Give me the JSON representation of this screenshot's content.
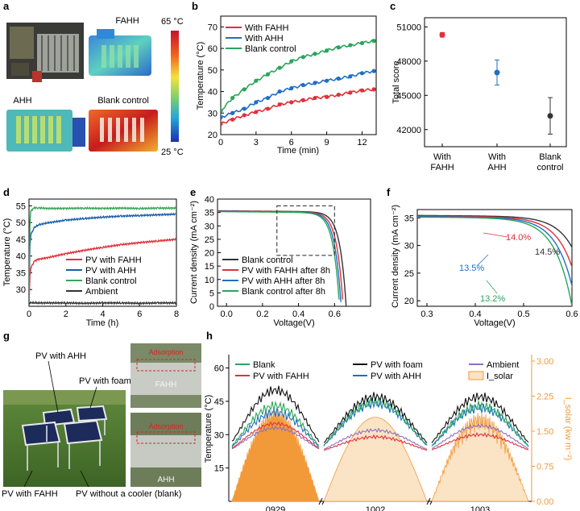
{
  "panel_letters": [
    "a",
    "b",
    "c",
    "d",
    "e",
    "f",
    "g",
    "h"
  ],
  "colors": {
    "fahh": "#e0303a",
    "ahh": "#1f6fc4",
    "blank": "#2aa55c",
    "ambient": "#333333",
    "ahh_d": "#1b5fa8",
    "blank_d": "#3aa45a",
    "solar": "#f29a3a",
    "solar_fill": "#fbe3c6"
  },
  "panel_a": {
    "labels": [
      "FAHH",
      "AHH",
      "Blank control"
    ],
    "colorbar_max": "65 °C",
    "colorbar_min": "25 °C"
  },
  "chart_data": [
    {
      "panel": "b",
      "type": "line",
      "title": "",
      "xlabel": "Time (min)",
      "ylabel": "Temperature (°C)",
      "xlim": [
        0,
        13.2
      ],
      "ylim": [
        20,
        75
      ],
      "xticks": [
        0,
        3,
        6,
        9,
        12
      ],
      "yticks": [
        20,
        30,
        40,
        50,
        60,
        70
      ],
      "x": [
        0,
        1,
        2,
        3,
        4,
        5,
        6,
        7,
        8,
        9,
        10,
        11,
        12,
        13
      ],
      "series": [
        {
          "name": "With FAHH",
          "values": [
            25,
            27,
            29,
            30.5,
            32,
            34,
            35,
            36,
            37,
            37.5,
            38.5,
            39.5,
            40.5,
            41
          ]
        },
        {
          "name": "With AHH",
          "values": [
            28,
            30,
            32,
            35,
            37,
            40,
            41.5,
            43,
            44,
            45,
            46,
            47,
            48.5,
            49.5
          ]
        },
        {
          "name": "Blank control",
          "values": [
            31,
            37,
            41,
            45,
            48,
            51,
            54,
            56,
            57.5,
            59,
            60.5,
            61.5,
            62.5,
            63.5
          ]
        }
      ]
    },
    {
      "panel": "c",
      "type": "scatter",
      "ylabel": "Total score",
      "ylim": [
        40500,
        51800
      ],
      "yticks": [
        42000,
        45000,
        48000,
        51000
      ],
      "categories": [
        "With FAHH",
        "With AHH",
        "Blank control"
      ],
      "values": [
        50300,
        47000,
        43200
      ],
      "errors": [
        200,
        1100,
        1600
      ]
    },
    {
      "panel": "d",
      "type": "line",
      "xlabel": "Time (h)",
      "ylabel": "Temperature (°C)",
      "xlim": [
        0,
        8
      ],
      "ylim": [
        25,
        57
      ],
      "xticks": [
        0,
        2,
        4,
        6,
        8
      ],
      "yticks": [
        30,
        35,
        40,
        45,
        50,
        55
      ],
      "x": [
        0,
        0.05,
        0.1,
        0.3,
        0.5,
        1,
        2,
        3,
        4,
        5,
        6,
        7,
        8
      ],
      "series": [
        {
          "name": "PV with FAHH",
          "values": [
            26,
            34,
            36.5,
            38.5,
            39,
            39.5,
            40.7,
            41.7,
            42.6,
            43.4,
            44,
            44.5,
            45
          ]
        },
        {
          "name": "PV with AHH",
          "values": [
            26,
            43,
            46.5,
            48.5,
            49.3,
            49.9,
            50.7,
            51.2,
            51.6,
            51.9,
            52.1,
            52.3,
            52.5
          ]
        },
        {
          "name": "Blank control",
          "values": [
            26,
            50,
            53.5,
            54.4,
            54.4,
            54.2,
            54.2,
            54.3,
            54.2,
            54.3,
            54.2,
            54.3,
            54.3
          ]
        },
        {
          "name": "Ambient",
          "values": [
            26,
            26,
            26,
            26.1,
            26,
            26,
            26,
            25.9,
            26,
            26,
            25.9,
            26,
            26
          ]
        }
      ]
    },
    {
      "panel": "e",
      "type": "line",
      "xlabel": "Voltage(V)",
      "ylabel": "Current density (mA cm⁻²)",
      "xlim": [
        -0.05,
        0.8
      ],
      "ylim": [
        0,
        40
      ],
      "xticks": [
        0.0,
        0.2,
        0.4,
        0.6
      ],
      "yticks": [
        0,
        5,
        10,
        15,
        20,
        25,
        30,
        35,
        40
      ],
      "zoom_box": {
        "x0": 0.28,
        "x1": 0.6,
        "y0": 19,
        "y1": 37.5
      },
      "series": [
        {
          "name": "Blank control",
          "voc": 0.665,
          "jsc": 35.6
        },
        {
          "name": "PV with FAHH after 8h",
          "voc": 0.648,
          "jsc": 35.5
        },
        {
          "name": "PV with AHH after 8h",
          "voc": 0.637,
          "jsc": 35.4
        },
        {
          "name": "Blank control after 8h",
          "voc": 0.628,
          "jsc": 35.3
        }
      ]
    },
    {
      "panel": "f",
      "type": "line",
      "xlabel": "Voltage(V)",
      "ylabel": "Current density (mA cm⁻²)",
      "xlim": [
        0.28,
        0.6
      ],
      "ylim": [
        19,
        36.5
      ],
      "xticks": [
        0.3,
        0.4,
        0.5,
        0.6
      ],
      "yticks": [
        20,
        25,
        30,
        35
      ],
      "annotations": [
        "14.0%",
        "14.5%",
        "13.5%",
        "13.2%"
      ]
    },
    {
      "panel": "h",
      "type": "line",
      "ylabel": "Temperature (°C)",
      "y2label": "I_solar (kw m⁻²)",
      "ylim": [
        0,
        66
      ],
      "yticks": [
        15,
        30,
        45,
        60
      ],
      "y2ticks": [
        "0.00",
        "0.75",
        "1.50",
        "2.25",
        "3.00"
      ],
      "categories": [
        "0929",
        "1002",
        "1003"
      ],
      "legend": [
        "Blank",
        "PV with foam",
        "Ambient",
        "PV with FAHH",
        "PV with AHH",
        "I_solar"
      ],
      "peaks": {
        "blank": [
          43,
          45,
          43
        ],
        "foam": [
          50,
          47,
          47
        ],
        "ahh": [
          40,
          44,
          42
        ],
        "ambient": [
          33,
          32,
          34
        ],
        "fahh": [
          35,
          29,
          30
        ],
        "solar": [
          2.0,
          1.8,
          1.9
        ]
      }
    }
  ],
  "panel_g": {
    "labels": [
      "PV with AHH",
      "PV with foam",
      "PV with FAHH",
      "PV without a cooler (blank)"
    ],
    "inset_labels": [
      "FAHH",
      "AHH"
    ],
    "inset_red_labels": [
      "Adsorption",
      "Adsorption"
    ]
  }
}
